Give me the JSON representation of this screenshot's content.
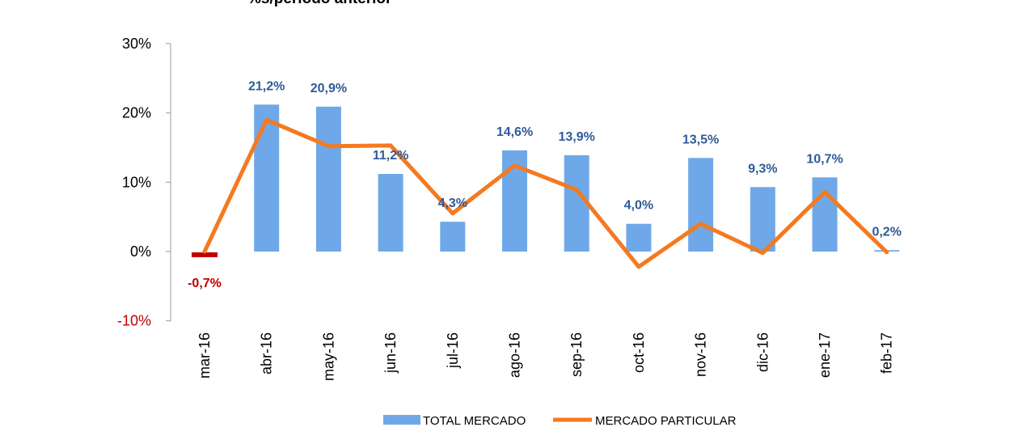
{
  "title": "%s/periodo anterior",
  "chart_data": {
    "type": "bar",
    "title": "%s/periodo anterior",
    "categories": [
      "mar-16",
      "abr-16",
      "may-16",
      "jun-16",
      "jul-16",
      "ago-16",
      "sep-16",
      "oct-16",
      "nov-16",
      "dic-16",
      "ene-17",
      "feb-17"
    ],
    "ylim": [
      -10,
      30
    ],
    "yticks": [
      -10,
      0,
      10,
      20,
      30
    ],
    "ytick_labels": [
      "-10%",
      "0%",
      "10%",
      "20%",
      "30%"
    ],
    "grid": false,
    "legend_position": "bottom",
    "series": [
      {
        "name": "TOTAL MERCADO",
        "type": "bar",
        "color": "#6fa8e8",
        "values": [
          -0.7,
          21.2,
          20.9,
          11.2,
          4.3,
          14.6,
          13.9,
          4.0,
          13.5,
          9.3,
          10.7,
          0.2
        ],
        "labels": [
          "-0,7%",
          "21,2%",
          "20,9%",
          "11,2%",
          "4,3%",
          "14,6%",
          "13,9%",
          "4,0%",
          "13,5%",
          "9,3%",
          "10,7%",
          "0,2%"
        ]
      },
      {
        "name": "MERCADO PARTICULAR",
        "type": "line",
        "color": "#f47a20",
        "values": [
          0,
          19.0,
          15.2,
          15.3,
          5.5,
          12.4,
          8.9,
          -2.2,
          4.0,
          -0.2,
          8.6,
          -0.1
        ]
      }
    ],
    "colors": {
      "negative_bar": "#c00000",
      "negative_label": "#c00000",
      "positive_label": "#2f5a99",
      "negative_tick": "#c00000",
      "axis": "#999999"
    }
  }
}
